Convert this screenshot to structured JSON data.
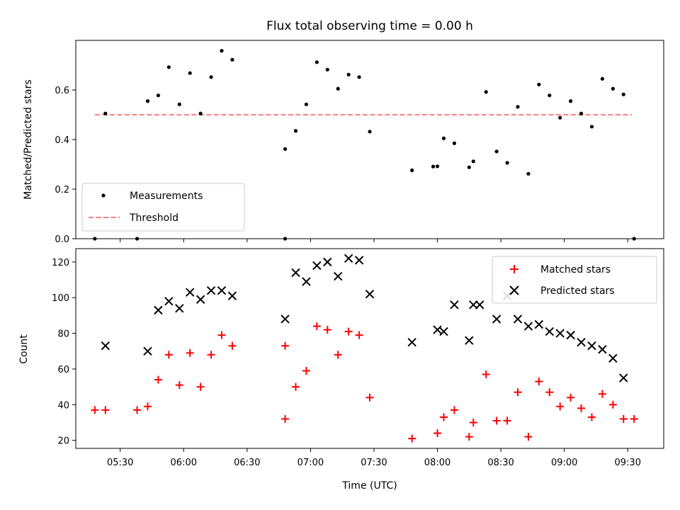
{
  "chart_data": [
    {
      "type": "scatter",
      "title": "Flux total observing time = 0.00 h",
      "ylabel": "Matched/Predicted stars",
      "xlabel": "",
      "ylim": [
        0,
        0.8
      ],
      "yticks": [
        0.0,
        0.2,
        0.4,
        0.6
      ],
      "ytick_labels": [
        "0.0",
        "0.2",
        "0.4",
        "0.6"
      ],
      "legend": {
        "position": "lower-left",
        "entries": [
          "Measurements",
          "Threshold"
        ]
      },
      "threshold": {
        "name": "Threshold",
        "value": 0.5,
        "x_start": "05:18",
        "x_end": "09:32",
        "color": "#ff7f7f"
      },
      "series": [
        {
          "name": "Measurements",
          "color": "#000000",
          "x": [
            "05:18",
            "05:23",
            "05:38",
            "05:43",
            "05:48",
            "05:53",
            "05:58",
            "06:03",
            "06:08",
            "06:13",
            "06:18",
            "06:23",
            "06:48",
            "06:48",
            "06:53",
            "06:58",
            "07:03",
            "07:08",
            "07:13",
            "07:18",
            "07:23",
            "07:28",
            "07:48",
            "07:58",
            "08:00",
            "08:03",
            "08:08",
            "08:15",
            "08:17",
            "08:23",
            "08:28",
            "08:33",
            "08:38",
            "08:43",
            "08:48",
            "08:53",
            "08:58",
            "09:03",
            "09:08",
            "09:13",
            "09:18",
            "09:23",
            "09:28",
            "09:33"
          ],
          "y": [
            0.0,
            0.505,
            0.0,
            0.555,
            0.578,
            0.692,
            0.542,
            0.668,
            0.505,
            0.652,
            0.758,
            0.722,
            0.0,
            0.362,
            0.435,
            0.542,
            0.712,
            0.682,
            0.605,
            0.662,
            0.652,
            0.432,
            0.276,
            0.291,
            0.292,
            0.405,
            0.385,
            0.288,
            0.312,
            0.592,
            0.352,
            0.306,
            0.532,
            0.262,
            0.622,
            0.578,
            0.488,
            0.555,
            0.505,
            0.452,
            0.645,
            0.605,
            0.582,
            0.0
          ]
        }
      ]
    },
    {
      "type": "scatter",
      "title": "",
      "ylabel": "Count",
      "xlabel": "Time (UTC)",
      "xlim": [
        "05:09",
        "09:47"
      ],
      "ylim": [
        15.5,
        127.5
      ],
      "yticks": [
        20,
        40,
        60,
        80,
        100,
        120
      ],
      "ytick_labels": [
        "20",
        "40",
        "60",
        "80",
        "100",
        "120"
      ],
      "xticks": [
        "05:30",
        "06:00",
        "06:30",
        "07:00",
        "07:30",
        "08:00",
        "08:30",
        "09:00",
        "09:30"
      ],
      "legend": {
        "position": "upper-right",
        "entries": [
          "Matched stars",
          "Predicted stars"
        ]
      },
      "series": [
        {
          "name": "Matched stars",
          "color": "#ff0000",
          "marker": "+",
          "x": [
            "05:18",
            "05:23",
            "05:38",
            "05:43",
            "05:48",
            "05:53",
            "05:58",
            "06:03",
            "06:08",
            "06:13",
            "06:18",
            "06:23",
            "06:48",
            "06:48",
            "06:53",
            "06:58",
            "07:03",
            "07:08",
            "07:13",
            "07:18",
            "07:23",
            "07:28",
            "07:48",
            "08:00",
            "08:03",
            "08:08",
            "08:15",
            "08:17",
            "08:23",
            "08:28",
            "08:33",
            "08:38",
            "08:43",
            "08:48",
            "08:53",
            "08:58",
            "09:03",
            "09:08",
            "09:13",
            "09:18",
            "09:23",
            "09:28",
            "09:33"
          ],
          "y": [
            37,
            37,
            37,
            39,
            54,
            68,
            51,
            69,
            50,
            68,
            79,
            73,
            32,
            73,
            50,
            59,
            84,
            82,
            68,
            81,
            79,
            44,
            21,
            24,
            33,
            37,
            22,
            30,
            57,
            31,
            31,
            47,
            22,
            53,
            47,
            39,
            44,
            38,
            33,
            46,
            40,
            32,
            32
          ]
        },
        {
          "name": "Predicted stars",
          "color": "#000000",
          "marker": "x",
          "x": [
            "05:23",
            "05:43",
            "05:48",
            "05:53",
            "05:58",
            "06:03",
            "06:08",
            "06:13",
            "06:18",
            "06:23",
            "06:48",
            "06:53",
            "06:58",
            "07:03",
            "07:08",
            "07:13",
            "07:18",
            "07:23",
            "07:28",
            "07:48",
            "08:00",
            "08:03",
            "08:08",
            "08:15",
            "08:17",
            "08:20",
            "08:28",
            "08:33",
            "08:38",
            "08:43",
            "08:48",
            "08:53",
            "08:58",
            "09:03",
            "09:08",
            "09:13",
            "09:18",
            "09:23",
            "09:28"
          ],
          "y": [
            73,
            70,
            93,
            98,
            94,
            103,
            99,
            104,
            104,
            101,
            88,
            114,
            109,
            118,
            120,
            112,
            122,
            121,
            102,
            75,
            82,
            81,
            96,
            76,
            96,
            96,
            88,
            101,
            88,
            84,
            85,
            81,
            80,
            79,
            75,
            73,
            71,
            66,
            55
          ]
        }
      ]
    }
  ]
}
